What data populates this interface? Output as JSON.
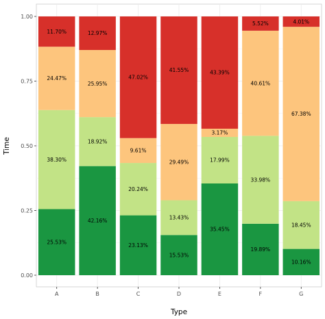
{
  "chart_data": {
    "type": "bar",
    "stacked": true,
    "xlabel": "Type",
    "ylabel": "Time",
    "ylim": [
      0,
      1
    ],
    "yticks": [
      "0.00",
      "0.25",
      "0.50",
      "0.75",
      "1.00"
    ],
    "ytick_values": [
      0,
      0.25,
      0.5,
      0.75,
      1.0
    ],
    "categories": [
      "A",
      "B",
      "C",
      "D",
      "E",
      "F",
      "G"
    ],
    "grid": true,
    "series": [
      {
        "color": "#1a9641",
        "values": [
          0.2553,
          0.4216,
          0.2313,
          0.1553,
          0.3545,
          0.1989,
          0.1016
        ],
        "labels": [
          "25.53%",
          "42.16%",
          "23.13%",
          "15.53%",
          "35.45%",
          "19.89%",
          "10.16%"
        ]
      },
      {
        "color": "#c2e386",
        "values": [
          0.383,
          0.1892,
          0.2024,
          0.1343,
          0.1799,
          0.3398,
          0.1845
        ],
        "labels": [
          "38.30%",
          "18.92%",
          "20.24%",
          "13.43%",
          "17.99%",
          "33.98%",
          "18.45%"
        ]
      },
      {
        "color": "#fdc57d",
        "values": [
          0.2447,
          0.2595,
          0.0961,
          0.2949,
          0.0317,
          0.4061,
          0.6738
        ],
        "labels": [
          "24.47%",
          "25.95%",
          "9.61%",
          "29.49%",
          "3.17%",
          "40.61%",
          "67.38%"
        ]
      },
      {
        "color": "#d7302a",
        "values": [
          0.117,
          0.1297,
          0.4702,
          0.4155,
          0.4339,
          0.0552,
          0.0401
        ],
        "labels": [
          "11.70%",
          "12.97%",
          "47.02%",
          "41.55%",
          "43.39%",
          "5.52%",
          "4.01%"
        ]
      }
    ]
  }
}
